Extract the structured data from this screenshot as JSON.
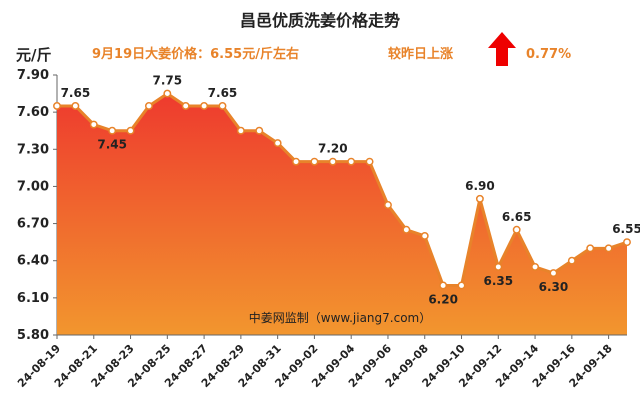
{
  "header": {
    "title": "昌邑优质洗姜价格走势",
    "unit": "元/斤",
    "price_text": "9月19日大姜价格：6.55元/斤左右",
    "change_text": "较昨日上涨",
    "change_value": "0.77%",
    "change_direction": "up",
    "accent_color": "#e8832a",
    "arrow_color": "#ee0000"
  },
  "watermark": "中姜网监制（www.jiang7.com）",
  "chart_data": {
    "type": "area",
    "title": "昌邑优质洗姜价格走势",
    "ylabel": "元/斤",
    "xlabel": "",
    "ylim": [
      5.8,
      7.9
    ],
    "yticks": [
      "7.90",
      "7.60",
      "7.30",
      "7.00",
      "6.70",
      "6.40",
      "6.10",
      "5.80"
    ],
    "x": [
      "24-08-19",
      "24-08-20",
      "24-08-21",
      "24-08-22",
      "24-08-23",
      "24-08-24",
      "24-08-25",
      "24-08-26",
      "24-08-27",
      "24-08-28",
      "24-08-29",
      "24-08-30",
      "24-08-31",
      "24-09-01",
      "24-09-02",
      "24-09-03",
      "24-09-04",
      "24-09-05",
      "24-09-06",
      "24-09-07",
      "24-09-08",
      "24-09-09",
      "24-09-10",
      "24-09-11",
      "24-09-12",
      "24-09-13",
      "24-09-14",
      "24-09-15",
      "24-09-16",
      "24-09-17",
      "24-09-18",
      "24-09-19"
    ],
    "xtick_labels": [
      "24-08-19",
      "24-08-21",
      "24-08-23",
      "24-08-25",
      "24-08-27",
      "24-08-29",
      "24-08-31",
      "24-09-02",
      "24-09-04",
      "24-09-06",
      "24-09-08",
      "24-09-10",
      "24-09-12",
      "24-09-14",
      "24-09-16",
      "24-09-18"
    ],
    "values": [
      7.65,
      7.65,
      7.5,
      7.45,
      7.45,
      7.65,
      7.75,
      7.65,
      7.65,
      7.65,
      7.45,
      7.45,
      7.35,
      7.2,
      7.2,
      7.2,
      7.2,
      7.2,
      6.85,
      6.65,
      6.6,
      6.2,
      6.2,
      6.9,
      6.35,
      6.65,
      6.35,
      6.3,
      6.4,
      6.5,
      6.5,
      6.55
    ],
    "data_labels": [
      {
        "index": 1,
        "text": "7.65"
      },
      {
        "index": 3,
        "text": "7.45"
      },
      {
        "index": 6,
        "text": "7.75"
      },
      {
        "index": 9,
        "text": "7.65"
      },
      {
        "index": 15,
        "text": "7.20"
      },
      {
        "index": 21,
        "text": "6.20"
      },
      {
        "index": 23,
        "text": "6.90"
      },
      {
        "index": 24,
        "text": "6.35"
      },
      {
        "index": 25,
        "text": "6.65"
      },
      {
        "index": 27,
        "text": "6.30"
      },
      {
        "index": 31,
        "text": "6.55"
      }
    ],
    "line_color": "#e8832a",
    "fill_top_color": "#ee3a2e",
    "fill_bottom_color": "#f2962e",
    "grid": false,
    "legend": "none"
  }
}
